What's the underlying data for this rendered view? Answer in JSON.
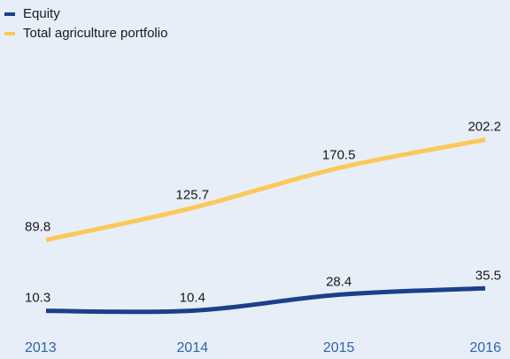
{
  "chart_data": {
    "type": "line",
    "categories": [
      "2013",
      "2014",
      "2015",
      "2016"
    ],
    "series": [
      {
        "name": "Equity",
        "color": "#1c3f8c",
        "values": [
          10.3,
          10.4,
          28.4,
          35.5
        ]
      },
      {
        "name": "Total agriculture portfolio",
        "color": "#fcc85a",
        "values": [
          89.8,
          125.7,
          170.5,
          202.2
        ]
      }
    ],
    "ylim": [
      0,
      220
    ],
    "legend": "top-left"
  }
}
